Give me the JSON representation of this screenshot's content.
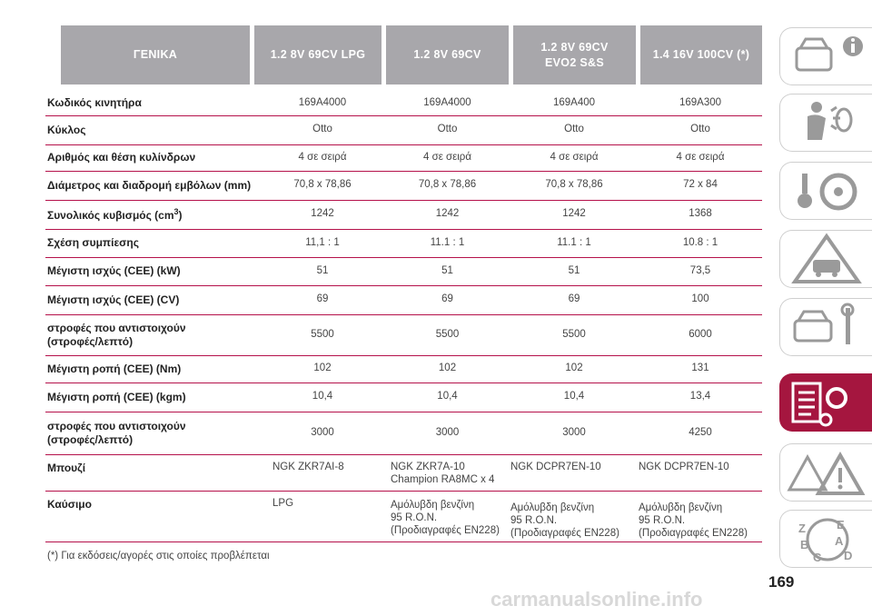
{
  "headers": [
    "ΓΕΝΙΚΑ",
    "1.2 8V 69CV LPG",
    "1.2 8V 69CV",
    "1.2 8V 69CV\nEVO2 S&S",
    "1.4 16V 100CV (*)"
  ],
  "rows": [
    {
      "label": "Κωδικός κινητήρα",
      "values": [
        "169A4000",
        "169A4000",
        "169A400",
        "169A300"
      ]
    },
    {
      "label": "Κύκλος",
      "values": [
        "Otto",
        "Otto",
        "Otto",
        "Otto"
      ]
    },
    {
      "label": "Αριθμός και θέση κυλίνδρων",
      "values": [
        "4 σε σειρά",
        "4 σε σειρά",
        "4 σε σειρά",
        "4 σε σειρά"
      ]
    },
    {
      "label": "Διάμετρος και διαδρομή εμβόλων (mm)",
      "values": [
        "70,8 x 78,86",
        "70,8 x 78,86",
        "70,8 x 78,86",
        "72 x 84"
      ]
    },
    {
      "label": "Συνολικός κυβισμός (cm³)",
      "values": [
        "1242",
        "1242",
        "1242",
        "1368"
      ]
    },
    {
      "label": "Σχέση συμπίεσης",
      "values": [
        "11,1 : 1",
        "11.1 : 1",
        "11.1 : 1",
        "10.8 : 1"
      ]
    },
    {
      "label": "Μέγιστη ισχύς (CEE) (kW)",
      "values": [
        "51",
        "51",
        "51",
        "73,5"
      ]
    },
    {
      "label": "Μέγιστη ισχύς (CEE) (CV)",
      "values": [
        "69",
        "69",
        "69",
        "100"
      ]
    },
    {
      "label": "στροφές που αντιστοιχούν\n(στροφές/λεπτό)",
      "values": [
        "5500",
        "5500",
        "5500",
        "6000"
      ]
    },
    {
      "label": "Μέγιστη ροπή (CEE) (Nm)",
      "values": [
        "102",
        "102",
        "102",
        "131"
      ]
    },
    {
      "label": "Μέγιστη ροπή (CEE) (kgm)",
      "values": [
        "10,4",
        "10,4",
        "10,4",
        "13,4"
      ]
    },
    {
      "label": "στροφές που αντιστοιχούν\n(στροφές/λεπτό)",
      "values": [
        "3000",
        "3000",
        "3000",
        "4250"
      ]
    },
    {
      "label": "Μπουζί",
      "values": [
        "NGK ZKR7AI-8",
        "NGK ZKR7A-10\nChampion RA8MC x 4",
        "NGK DCPR7EN-10",
        "NGK DCPR7EN-10"
      ]
    },
    {
      "label": "Καύσιμο",
      "values": [
        "LPG",
        "Αμόλυβδη βενζίνη\n95 R.O.N.\n(Προδιαγραφές EN228)",
        "Αμόλυβδη βενζίνη\n95 R.O.N.\n(Προδιαγραφές EN228)",
        "Αμόλυβδη βενζίνη\n95 R.O.N.\n(Προδιαγραφές EN228)"
      ]
    }
  ],
  "footnote": "(*) Για εκδόσεις/αγορές στις οποίες προβλέπεται",
  "page_number": "169",
  "watermark": "carmanualsonline.info",
  "side_tabs": [
    {
      "icon": "car-info-icon",
      "active": false
    },
    {
      "icon": "airbag-icon",
      "active": false
    },
    {
      "icon": "steering-key-icon",
      "active": false
    },
    {
      "icon": "warning-car-icon",
      "active": false
    },
    {
      "icon": "car-service-icon",
      "active": false
    },
    {
      "icon": "technical-data-icon",
      "active": true
    },
    {
      "icon": "warning-triangle-icon",
      "active": false
    },
    {
      "icon": "alphabetical-index-icon",
      "active": false
    }
  ],
  "colors": {
    "header_bg": "#a8a7ab",
    "accent": "#b5114a",
    "active_tab": "#a5163f"
  }
}
